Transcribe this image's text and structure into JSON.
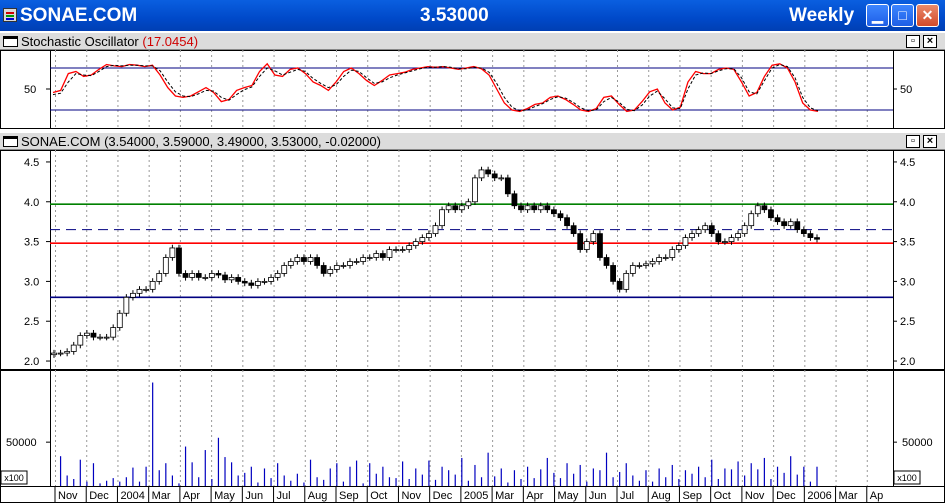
{
  "window": {
    "title_left": "SONAE.COM",
    "title_center": "3.53000",
    "title_right": "Weekly"
  },
  "stoch_panel": {
    "name": "Stochastic Oscillator",
    "value": "(17.0454)",
    "tick_label": "50"
  },
  "price_panel": {
    "name": "SONAE.COM",
    "values": "(3.54000, 3.59000, 3.49000, 3.53000, -0.02000)"
  },
  "volume_panel": {
    "tick_label": "50000",
    "scale_label": "x100"
  },
  "colors": {
    "stoch_line": "#ff0000",
    "band_line": "#000080",
    "resistance": "#008000",
    "support": "#ff0000",
    "mid_dash": "#000080",
    "volume": "#0000c0"
  },
  "chart_data": [
    {
      "type": "line",
      "name": "stochastic",
      "ylim": [
        0,
        100
      ],
      "ytick_labels": [
        "50"
      ],
      "bands": [
        20,
        80
      ],
      "x_range": [
        0,
        100
      ],
      "series": [
        {
          "x": [
            0,
            1,
            2,
            3,
            4,
            5,
            6,
            7,
            8,
            9,
            10,
            11,
            12,
            13,
            14,
            15,
            16,
            17,
            18,
            19,
            20,
            21,
            22,
            23,
            24,
            25,
            26,
            27,
            28,
            29,
            30,
            31,
            32,
            33,
            34,
            35,
            36,
            37,
            38,
            39,
            40,
            41,
            42,
            43,
            44,
            45,
            46,
            47,
            48,
            49,
            50,
            51,
            52,
            53,
            54,
            55,
            56,
            57,
            58,
            59,
            60,
            61,
            62,
            63,
            64,
            65,
            66,
            67,
            68,
            69,
            70,
            71,
            72,
            73,
            74,
            75,
            76,
            77,
            78,
            79,
            80,
            81,
            82,
            83,
            84,
            85,
            86,
            87,
            88,
            89,
            90,
            91,
            92,
            93,
            94,
            95,
            96,
            97,
            98,
            99,
            100
          ],
          "values": [
            45,
            48,
            72,
            75,
            68,
            70,
            78,
            85,
            83,
            82,
            85,
            84,
            82,
            84,
            70,
            52,
            40,
            38,
            40,
            46,
            52,
            45,
            32,
            35,
            48,
            52,
            55,
            75,
            86,
            70,
            68,
            78,
            80,
            72,
            60,
            55,
            48,
            60,
            75,
            80,
            72,
            62,
            55,
            62,
            70,
            72,
            74,
            78,
            80,
            82,
            81,
            82,
            80,
            78,
            80,
            82,
            79,
            70,
            50,
            30,
            20,
            18,
            22,
            28,
            30,
            38,
            40,
            35,
            28,
            20,
            18,
            22,
            38,
            40,
            28,
            18,
            20,
            32,
            46,
            50,
            30,
            20,
            24,
            60,
            75,
            72,
            72,
            78,
            80,
            78,
            60,
            40,
            45,
            68,
            84,
            86,
            80,
            60,
            30,
            20,
            18
          ]
        },
        {
          "x": [
            0,
            1,
            2,
            3,
            4,
            5,
            6,
            7,
            8,
            9,
            10,
            11,
            12,
            13,
            14,
            15,
            16,
            17,
            18,
            19,
            20,
            21,
            22,
            23,
            24,
            25,
            26,
            27,
            28,
            29,
            30,
            31,
            32,
            33,
            34,
            35,
            36,
            37,
            38,
            39,
            40,
            41,
            42,
            43,
            44,
            45,
            46,
            47,
            48,
            49,
            50,
            51,
            52,
            53,
            54,
            55,
            56,
            57,
            58,
            59,
            60,
            61,
            62,
            63,
            64,
            65,
            66,
            67,
            68,
            69,
            70,
            71,
            72,
            73,
            74,
            75,
            76,
            77,
            78,
            79,
            80,
            81,
            82,
            83,
            84,
            85,
            86,
            87,
            88,
            89,
            90,
            91,
            92,
            93,
            94,
            95,
            96,
            97,
            98,
            99,
            100
          ],
          "values": [
            42,
            44,
            60,
            72,
            70,
            69,
            75,
            82,
            84,
            83,
            84,
            84,
            83,
            83,
            76,
            60,
            46,
            40,
            39,
            43,
            48,
            47,
            38,
            34,
            42,
            49,
            53,
            68,
            80,
            76,
            70,
            74,
            78,
            75,
            65,
            58,
            52,
            56,
            68,
            77,
            75,
            66,
            58,
            60,
            66,
            70,
            73,
            76,
            79,
            81,
            81,
            82,
            81,
            79,
            79,
            81,
            80,
            74,
            58,
            38,
            24,
            19,
            20,
            25,
            29,
            35,
            39,
            37,
            31,
            23,
            19,
            20,
            32,
            38,
            31,
            21,
            19,
            27,
            40,
            47,
            36,
            23,
            22,
            50,
            70,
            73,
            72,
            76,
            79,
            79,
            66,
            46,
            43,
            62,
            80,
            85,
            82,
            66,
            38,
            23,
            19
          ]
        }
      ]
    },
    {
      "type": "candlestick",
      "name": "price",
      "ylim": [
        1.9,
        4.65
      ],
      "ytick_labels": [
        "2.0",
        "2.5",
        "3.0",
        "3.5",
        "4.0",
        "4.5"
      ],
      "yticks": [
        2.0,
        2.5,
        3.0,
        3.5,
        4.0,
        4.5
      ],
      "horizontal_lines": [
        {
          "y": 3.97,
          "style": "solid",
          "color_key": "resistance"
        },
        {
          "y": 3.65,
          "style": "dashed",
          "color_key": "mid_dash"
        },
        {
          "y": 3.48,
          "style": "solid",
          "color_key": "support"
        },
        {
          "y": 2.8,
          "style": "solid",
          "color_key": "band_line"
        }
      ],
      "close": [
        2.1,
        2.1,
        2.12,
        2.2,
        2.32,
        2.35,
        2.3,
        2.3,
        2.3,
        2.42,
        2.6,
        2.8,
        2.85,
        2.9,
        2.9,
        3.0,
        3.1,
        3.3,
        3.42,
        3.1,
        3.05,
        3.1,
        3.05,
        3.05,
        3.1,
        3.08,
        3.02,
        3.05,
        3.0,
        2.98,
        2.95,
        3.0,
        3.0,
        3.05,
        3.1,
        3.2,
        3.25,
        3.3,
        3.25,
        3.3,
        3.2,
        3.1,
        3.15,
        3.2,
        3.2,
        3.25,
        3.25,
        3.3,
        3.3,
        3.35,
        3.3,
        3.4,
        3.4,
        3.4,
        3.45,
        3.5,
        3.55,
        3.6,
        3.7,
        3.9,
        3.95,
        3.9,
        3.95,
        4.0,
        4.3,
        4.4,
        4.35,
        4.3,
        4.3,
        4.1,
        3.95,
        3.9,
        3.95,
        3.9,
        3.95,
        3.9,
        3.85,
        3.8,
        3.7,
        3.6,
        3.4,
        3.5,
        3.6,
        3.3,
        3.2,
        3.0,
        2.9,
        3.1,
        3.2,
        3.2,
        3.22,
        3.25,
        3.3,
        3.3,
        3.4,
        3.45,
        3.55,
        3.6,
        3.65,
        3.7,
        3.6,
        3.5,
        3.5,
        3.55,
        3.6,
        3.7,
        3.85,
        3.95,
        3.9,
        3.8,
        3.75,
        3.7,
        3.75,
        3.65,
        3.6,
        3.55,
        3.53
      ],
      "bar_count": 117
    },
    {
      "type": "bar",
      "name": "volume",
      "ylim": [
        0,
        130000
      ],
      "ytick_labels": [
        "50000"
      ],
      "yticks": [
        50000
      ],
      "values": [
        0,
        34000,
        12000,
        8000,
        30000,
        5000,
        26000,
        3000,
        6000,
        9000,
        5000,
        10000,
        21000,
        5000,
        22000,
        118000,
        18000,
        26000,
        12000,
        3000,
        45000,
        27000,
        10000,
        41000,
        8000,
        55000,
        33000,
        27000,
        12000,
        15000,
        22000,
        4000,
        20000,
        9000,
        26000,
        12000,
        6000,
        14000,
        4000,
        30000,
        10000,
        7000,
        20000,
        26000,
        5000,
        22000,
        29000,
        3000,
        26000,
        14000,
        22000,
        10000,
        9000,
        28000,
        8000,
        20000,
        13000,
        29000,
        7000,
        22000,
        18000,
        13000,
        32000,
        6000,
        24000,
        10000,
        38000,
        11000,
        20000,
        4000,
        18000,
        8000,
        22000,
        9000,
        19000,
        32000,
        15000,
        9000,
        26000,
        14000,
        24000,
        5000,
        20000,
        18000,
        38000,
        10000,
        16000,
        26000,
        12000,
        6000,
        18000,
        5000,
        20000,
        10000,
        24000,
        8000,
        18000,
        14000,
        22000,
        10000,
        30000,
        8000,
        20000,
        19000,
        28000,
        12000,
        26000,
        19000,
        32000,
        8000,
        22000,
        15000,
        34000,
        13000,
        22000,
        5000,
        22000
      ],
      "bar_count": 117
    }
  ],
  "time_axis": {
    "labels": [
      "Nov",
      "Dec",
      "2004",
      "Mar",
      "Apr",
      "May",
      "Jun",
      "Jul",
      "Aug",
      "Sep",
      "Oct",
      "Nov",
      "Dec",
      "2005",
      "Mar",
      "Apr",
      "May",
      "Jun",
      "Jul",
      "Aug",
      "Sep",
      "Oct",
      "Nov",
      "Dec",
      "2006",
      "Mar",
      "Ap"
    ]
  }
}
